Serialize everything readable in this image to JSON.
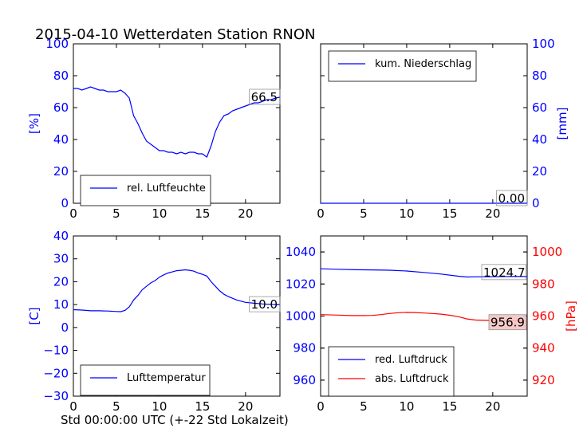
{
  "figure": {
    "title": "2015-04-10 Wetterdaten Station RNON",
    "xlabel": "Std 00:00:00 UTC (+-22 Std Lokalzeit)"
  },
  "colors": {
    "blue": "#0000ff",
    "red": "#ff0000",
    "black": "#000000",
    "value_box_red": "#f4c4c4"
  },
  "chart_data": [
    {
      "type": "line",
      "panel": "top-left",
      "ylabel": "[%]",
      "xlim": [
        0,
        24
      ],
      "ylim": [
        0,
        100
      ],
      "xticks": [
        "0",
        "5",
        "10",
        "15",
        "20"
      ],
      "yticks": [
        "0",
        "20",
        "40",
        "60",
        "80",
        "100"
      ],
      "legend_position": "lower-left",
      "series": [
        {
          "name": "rel. Luftfeuchte",
          "color": "#0000ff",
          "x": [
            0,
            0.5,
            1,
            1.5,
            2,
            2.5,
            3,
            3.5,
            4,
            4.5,
            5,
            5.5,
            6,
            6.5,
            7,
            7.5,
            8,
            8.5,
            9,
            9.5,
            10,
            10.5,
            11,
            11.5,
            12,
            12.5,
            13,
            13.5,
            14,
            14.5,
            15,
            15.5,
            16,
            16.5,
            17,
            17.5,
            18,
            18.5,
            19,
            19.5,
            20,
            20.5,
            21,
            21.5,
            22,
            22.5,
            23,
            23.5,
            24
          ],
          "y": [
            72,
            72,
            71,
            72,
            73,
            72,
            71,
            71,
            70,
            70,
            70,
            71,
            69,
            66,
            55,
            50,
            44,
            39,
            37,
            35,
            33,
            33,
            32,
            32,
            31,
            32,
            31,
            32,
            32,
            31,
            31,
            29,
            36,
            45,
            51,
            55,
            56,
            58,
            59,
            60,
            61,
            62,
            63,
            63,
            64,
            65,
            65,
            66,
            66.5
          ]
        }
      ],
      "value_label": "66.5"
    },
    {
      "type": "line",
      "panel": "top-right",
      "ylabel": "[mm]",
      "xlim": [
        0,
        24
      ],
      "ylim": [
        0,
        100
      ],
      "xticks": [
        "0",
        "5",
        "10",
        "15",
        "20"
      ],
      "yticks": [
        "0",
        "20",
        "40",
        "60",
        "80",
        "100"
      ],
      "legend_position": "upper-left",
      "series": [
        {
          "name": "kum. Niederschlag",
          "color": "#0000ff",
          "x": [
            0,
            24
          ],
          "y": [
            0,
            0
          ]
        }
      ],
      "value_label": "0.00"
    },
    {
      "type": "line",
      "panel": "bottom-left",
      "ylabel": "[C]",
      "xlim": [
        0,
        24
      ],
      "ylim": [
        -30,
        40
      ],
      "xticks": [
        "0",
        "5",
        "10",
        "15",
        "20"
      ],
      "yticks": [
        "−30",
        "−20",
        "−10",
        "0",
        "10",
        "20",
        "30",
        "40"
      ],
      "legend_position": "lower-left",
      "series": [
        {
          "name": "Lufttemperatur",
          "color": "#0000ff",
          "x": [
            0,
            1,
            2,
            3,
            4,
            5,
            5.5,
            6,
            6.5,
            7,
            7.5,
            8,
            8.5,
            9,
            9.5,
            10,
            10.5,
            11,
            11.5,
            12,
            12.5,
            13,
            13.5,
            14,
            14.5,
            15,
            15.5,
            16,
            16.5,
            17,
            17.5,
            18,
            19,
            20,
            21,
            22,
            23,
            24
          ],
          "y": [
            7.8,
            7.6,
            7.3,
            7.3,
            7.2,
            7.0,
            6.9,
            7.5,
            9.0,
            12,
            14,
            16.5,
            18,
            19.5,
            20.5,
            22,
            23,
            23.8,
            24.3,
            24.8,
            25.0,
            25.2,
            25.0,
            24.6,
            23.8,
            23.2,
            22.5,
            20,
            18,
            16,
            14.5,
            13.5,
            12,
            11,
            10.6,
            10.3,
            10.1,
            10.0
          ]
        }
      ],
      "value_label": "10.0"
    },
    {
      "type": "line",
      "panel": "bottom-right",
      "ylabel": "[hPa]",
      "xlim": [
        0,
        24
      ],
      "ylim_left": [
        950,
        1050
      ],
      "ylim_right": [
        910,
        1010
      ],
      "xticks": [
        "0",
        "5",
        "10",
        "15",
        "20"
      ],
      "yticks_left": [
        "960",
        "980",
        "1000",
        "1020",
        "1040"
      ],
      "yticks_right": [
        "920",
        "940",
        "960",
        "980",
        "1000"
      ],
      "legend_position": "lower-left",
      "series": [
        {
          "name": "red. Luftdruck",
          "color": "#0000ff",
          "axis": "left",
          "x": [
            0,
            2,
            4,
            6,
            8,
            10,
            12,
            14,
            16,
            17,
            18,
            20,
            22,
            24
          ],
          "y": [
            1029.5,
            1029.2,
            1028.9,
            1028.8,
            1028.6,
            1028.1,
            1027.2,
            1026.2,
            1024.9,
            1024.4,
            1024.5,
            1024.6,
            1024.7,
            1024.7
          ]
        },
        {
          "name": "abs. Luftdruck",
          "color": "#ff0000",
          "axis": "right",
          "x": [
            0,
            2,
            3.5,
            5,
            6,
            7,
            8,
            9,
            10,
            11,
            12,
            13,
            14,
            15,
            16,
            17,
            18,
            19,
            20,
            22,
            24
          ],
          "y": [
            960.9,
            960.6,
            960.3,
            960.3,
            960.4,
            960.9,
            961.6,
            962.1,
            962.3,
            962.2,
            961.9,
            961.6,
            961.2,
            960.5,
            959.6,
            958.2,
            957.5,
            957.3,
            957.2,
            957.0,
            956.9
          ]
        }
      ],
      "value_labels": {
        "left": "1024.7",
        "right": "956.9"
      }
    }
  ]
}
